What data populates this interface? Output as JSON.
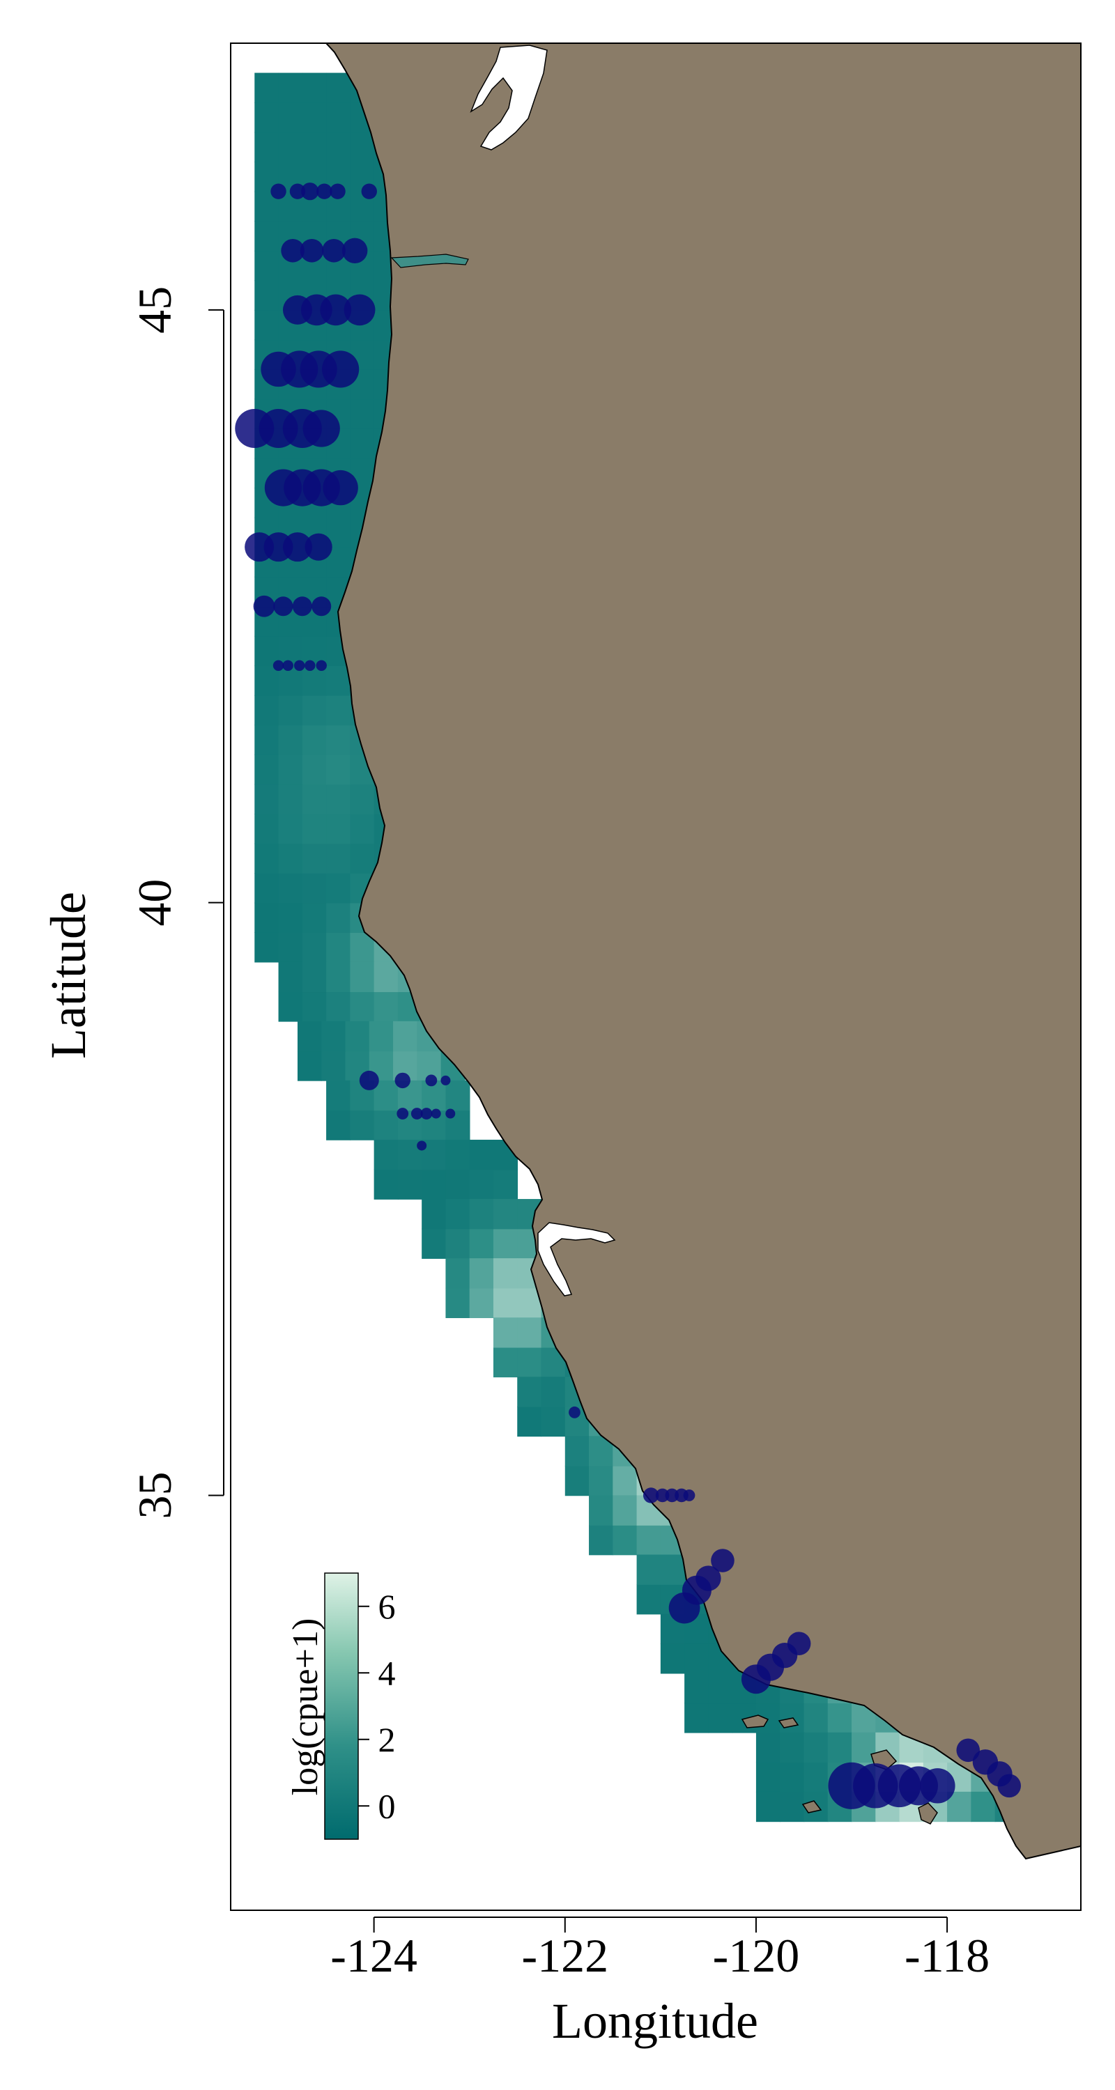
{
  "chart_data": {
    "type": "heatmap",
    "title": "",
    "xlabel": "Longitude",
    "ylabel": "Latitude",
    "xlim": [
      -125.5,
      -116.6
    ],
    "ylim": [
      31.5,
      47.25
    ],
    "x_ticks": [
      -124,
      -122,
      -120,
      -118
    ],
    "x_tick_labels": [
      "-124",
      "-122",
      "-120",
      "-118"
    ],
    "y_ticks": [
      35,
      40,
      45
    ],
    "y_tick_labels": [
      "35",
      "40",
      "45"
    ],
    "grid": false,
    "legend": {
      "title": "log(cpue+1)",
      "position": "bottom-left",
      "ticks": [
        0,
        2,
        4,
        6
      ],
      "tick_labels": [
        "0",
        "2",
        "4",
        "6"
      ],
      "range": [
        -1,
        7
      ],
      "color_low": "#006b6e",
      "color_high": "#dff2e6"
    },
    "colors": {
      "land": "#8a7c68",
      "point": "#0b0b7a",
      "water_inland": "#ffffff"
    },
    "grid_bounds": [
      {
        "lat": [
          46.75,
          47.0
        ],
        "lon": [
          -125.25,
          -123.75
        ]
      },
      {
        "lat": [
          39.5,
          46.75
        ],
        "lon": [
          -125.25,
          -123.75
        ]
      },
      {
        "lat": [
          39.0,
          39.5
        ],
        "lon": [
          -125.0,
          -123.5
        ]
      },
      {
        "lat": [
          38.5,
          39.0
        ],
        "lon": [
          -124.8,
          -123.25
        ]
      },
      {
        "lat": [
          38.0,
          38.5
        ],
        "lon": [
          -124.5,
          -123.0
        ]
      },
      {
        "lat": [
          37.5,
          38.0
        ],
        "lon": [
          -124.0,
          -122.5
        ]
      },
      {
        "lat": [
          37.0,
          37.5
        ],
        "lon": [
          -123.5,
          -122.0
        ]
      },
      {
        "lat": [
          36.5,
          37.0
        ],
        "lon": [
          -123.25,
          -121.75
        ]
      },
      {
        "lat": [
          36.0,
          36.5
        ],
        "lon": [
          -122.75,
          -121.25
        ]
      },
      {
        "lat": [
          35.5,
          36.0
        ],
        "lon": [
          -122.5,
          -120.75
        ]
      },
      {
        "lat": [
          35.0,
          35.5
        ],
        "lon": [
          -122.0,
          -120.5
        ]
      },
      {
        "lat": [
          34.5,
          35.0
        ],
        "lon": [
          -121.75,
          -120.25
        ]
      },
      {
        "lat": [
          34.0,
          34.5
        ],
        "lon": [
          -121.25,
          -118.5
        ]
      },
      {
        "lat": [
          33.5,
          34.0
        ],
        "lon": [
          -121.0,
          -117.75
        ]
      },
      {
        "lat": [
          33.0,
          33.5
        ],
        "lon": [
          -120.75,
          -117.25
        ]
      },
      {
        "lat": [
          32.5,
          33.0
        ],
        "lon": [
          -120.0,
          -117.0
        ]
      },
      {
        "lat": [
          32.25,
          32.5
        ],
        "lon": [
          -120.0,
          -117.25
        ]
      }
    ],
    "hotspots": [
      {
        "lat": 36.7,
        "lon": -122.5,
        "value": 5.2
      },
      {
        "lat": 35.7,
        "lon": -121.2,
        "value": 4.6
      },
      {
        "lat": 35.3,
        "lon": -120.9,
        "value": 6.0
      },
      {
        "lat": 35.1,
        "lon": -121.0,
        "value": 5.5
      },
      {
        "lat": 32.6,
        "lon": -118.4,
        "value": 6.8
      },
      {
        "lat": 32.8,
        "lon": -118.0,
        "value": 5.6
      },
      {
        "lat": 33.4,
        "lon": -118.8,
        "value": 4.0
      },
      {
        "lat": 39.5,
        "lon": -123.8,
        "value": 3.6
      },
      {
        "lat": 38.7,
        "lon": -123.6,
        "value": 3.4
      },
      {
        "lat": 41.2,
        "lon": -124.4,
        "value": 1.6
      },
      {
        "lat": 40.8,
        "lon": -124.5,
        "value": 1.3
      }
    ],
    "base_value": -0.6,
    "points": [
      {
        "lon": -125.0,
        "lat": 46.0,
        "size": 0.8
      },
      {
        "lon": -124.8,
        "lat": 46.0,
        "size": 0.8
      },
      {
        "lon": -124.67,
        "lat": 46.0,
        "size": 0.9
      },
      {
        "lon": -124.52,
        "lat": 46.0,
        "size": 0.8
      },
      {
        "lon": -124.38,
        "lat": 46.0,
        "size": 0.8
      },
      {
        "lon": -124.05,
        "lat": 46.0,
        "size": 0.8
      },
      {
        "lon": -124.85,
        "lat": 45.5,
        "size": 1.2
      },
      {
        "lon": -124.65,
        "lat": 45.5,
        "size": 1.2
      },
      {
        "lon": -124.42,
        "lat": 45.5,
        "size": 1.2
      },
      {
        "lon": -124.2,
        "lat": 45.5,
        "size": 1.3
      },
      {
        "lon": -124.8,
        "lat": 45.0,
        "size": 1.5
      },
      {
        "lon": -124.6,
        "lat": 45.0,
        "size": 1.6
      },
      {
        "lon": -124.4,
        "lat": 45.0,
        "size": 1.6
      },
      {
        "lon": -124.15,
        "lat": 45.0,
        "size": 1.6
      },
      {
        "lon": -125.0,
        "lat": 44.5,
        "size": 1.8
      },
      {
        "lon": -124.78,
        "lat": 44.5,
        "size": 1.9
      },
      {
        "lon": -124.58,
        "lat": 44.5,
        "size": 1.9
      },
      {
        "lon": -124.35,
        "lat": 44.5,
        "size": 1.9
      },
      {
        "lon": -125.25,
        "lat": 44.0,
        "size": 2.0
      },
      {
        "lon": -125.0,
        "lat": 44.0,
        "size": 2.0
      },
      {
        "lon": -124.75,
        "lat": 44.0,
        "size": 2.0
      },
      {
        "lon": -124.55,
        "lat": 44.0,
        "size": 1.9
      },
      {
        "lon": -124.95,
        "lat": 43.5,
        "size": 1.9
      },
      {
        "lon": -124.75,
        "lat": 43.5,
        "size": 1.9
      },
      {
        "lon": -124.55,
        "lat": 43.5,
        "size": 1.9
      },
      {
        "lon": -124.35,
        "lat": 43.5,
        "size": 1.8
      },
      {
        "lon": -125.2,
        "lat": 43.0,
        "size": 1.5
      },
      {
        "lon": -125.0,
        "lat": 43.0,
        "size": 1.5
      },
      {
        "lon": -124.8,
        "lat": 43.0,
        "size": 1.5
      },
      {
        "lon": -124.58,
        "lat": 43.0,
        "size": 1.4
      },
      {
        "lon": -125.15,
        "lat": 42.5,
        "size": 1.1
      },
      {
        "lon": -124.95,
        "lat": 42.5,
        "size": 1.0
      },
      {
        "lon": -124.75,
        "lat": 42.5,
        "size": 1.0
      },
      {
        "lon": -124.55,
        "lat": 42.5,
        "size": 1.0
      },
      {
        "lon": -125.0,
        "lat": 42.0,
        "size": 0.55
      },
      {
        "lon": -124.9,
        "lat": 42.0,
        "size": 0.55
      },
      {
        "lon": -124.78,
        "lat": 42.0,
        "size": 0.55
      },
      {
        "lon": -124.67,
        "lat": 42.0,
        "size": 0.55
      },
      {
        "lon": -124.55,
        "lat": 42.0,
        "size": 0.55
      },
      {
        "lon": -124.05,
        "lat": 38.5,
        "size": 1.0
      },
      {
        "lon": -123.7,
        "lat": 38.5,
        "size": 0.8
      },
      {
        "lon": -123.4,
        "lat": 38.5,
        "size": 0.6
      },
      {
        "lon": -123.25,
        "lat": 38.5,
        "size": 0.5
      },
      {
        "lon": -123.7,
        "lat": 38.22,
        "size": 0.6
      },
      {
        "lon": -123.55,
        "lat": 38.22,
        "size": 0.6
      },
      {
        "lon": -123.45,
        "lat": 38.22,
        "size": 0.6
      },
      {
        "lon": -123.35,
        "lat": 38.22,
        "size": 0.5
      },
      {
        "lon": -123.2,
        "lat": 38.22,
        "size": 0.5
      },
      {
        "lon": -123.5,
        "lat": 37.95,
        "size": 0.5
      },
      {
        "lon": -121.9,
        "lat": 35.7,
        "size": 0.6
      },
      {
        "lon": -121.1,
        "lat": 35.0,
        "size": 0.8
      },
      {
        "lon": -120.98,
        "lat": 35.0,
        "size": 0.7
      },
      {
        "lon": -120.88,
        "lat": 35.0,
        "size": 0.7
      },
      {
        "lon": -120.78,
        "lat": 35.0,
        "size": 0.7
      },
      {
        "lon": -120.7,
        "lat": 35.0,
        "size": 0.6
      },
      {
        "lon": -120.35,
        "lat": 34.45,
        "size": 1.2
      },
      {
        "lon": -120.5,
        "lat": 34.3,
        "size": 1.3
      },
      {
        "lon": -120.62,
        "lat": 34.2,
        "size": 1.5
      },
      {
        "lon": -120.75,
        "lat": 34.05,
        "size": 1.6
      },
      {
        "lon": -119.55,
        "lat": 33.75,
        "size": 1.2
      },
      {
        "lon": -119.7,
        "lat": 33.65,
        "size": 1.3
      },
      {
        "lon": -119.85,
        "lat": 33.55,
        "size": 1.4
      },
      {
        "lon": -120.0,
        "lat": 33.45,
        "size": 1.5
      },
      {
        "lon": -119.0,
        "lat": 32.55,
        "size": 2.4
      },
      {
        "lon": -118.75,
        "lat": 32.55,
        "size": 2.3
      },
      {
        "lon": -118.5,
        "lat": 32.55,
        "size": 2.2
      },
      {
        "lon": -118.3,
        "lat": 32.55,
        "size": 2.0
      },
      {
        "lon": -118.1,
        "lat": 32.55,
        "size": 1.8
      },
      {
        "lon": -117.78,
        "lat": 32.85,
        "size": 1.2
      },
      {
        "lon": -117.6,
        "lat": 32.75,
        "size": 1.3
      },
      {
        "lon": -117.45,
        "lat": 32.65,
        "size": 1.3
      },
      {
        "lon": -117.35,
        "lat": 32.55,
        "size": 1.2
      }
    ]
  }
}
